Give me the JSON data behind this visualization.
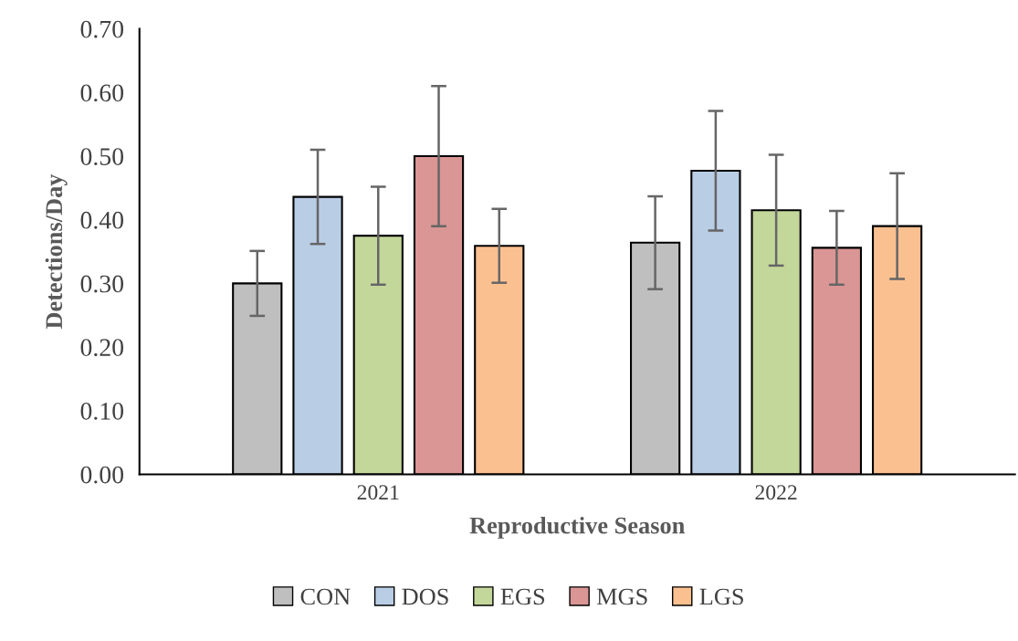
{
  "chart_data": {
    "type": "bar",
    "xlabel": "Reproductive Season",
    "ylabel": "Detections/Day",
    "categories": [
      "2021",
      "2022"
    ],
    "series": [
      {
        "name": "CON",
        "color": "#bfbfbf",
        "values": [
          0.3,
          0.364
        ],
        "errors": [
          0.051,
          0.073
        ]
      },
      {
        "name": "DOS",
        "color": "#b9cde5",
        "values": [
          0.436,
          0.477
        ],
        "errors": [
          0.074,
          0.094
        ]
      },
      {
        "name": "EGS",
        "color": "#c4d79b",
        "values": [
          0.375,
          0.415
        ],
        "errors": [
          0.077,
          0.087
        ]
      },
      {
        "name": "MGS",
        "color": "#d99694",
        "values": [
          0.5,
          0.356
        ],
        "errors": [
          0.11,
          0.058
        ]
      },
      {
        "name": "LGS",
        "color": "#fac090",
        "values": [
          0.359,
          0.39
        ],
        "errors": [
          0.058,
          0.083
        ]
      }
    ],
    "ylim": [
      0,
      0.7
    ],
    "yticks": [
      {
        "value": 0,
        "label": "0.00"
      },
      {
        "value": 0.1,
        "label": "0.10"
      },
      {
        "value": 0.2,
        "label": "0.20"
      },
      {
        "value": 0.3,
        "label": "0.30"
      },
      {
        "value": 0.4,
        "label": "0.40"
      },
      {
        "value": 0.5,
        "label": "0.50"
      },
      {
        "value": 0.6,
        "label": "0.60"
      },
      {
        "value": 0.7,
        "label": "0.70"
      }
    ],
    "grid": false,
    "legend": "bottom"
  }
}
